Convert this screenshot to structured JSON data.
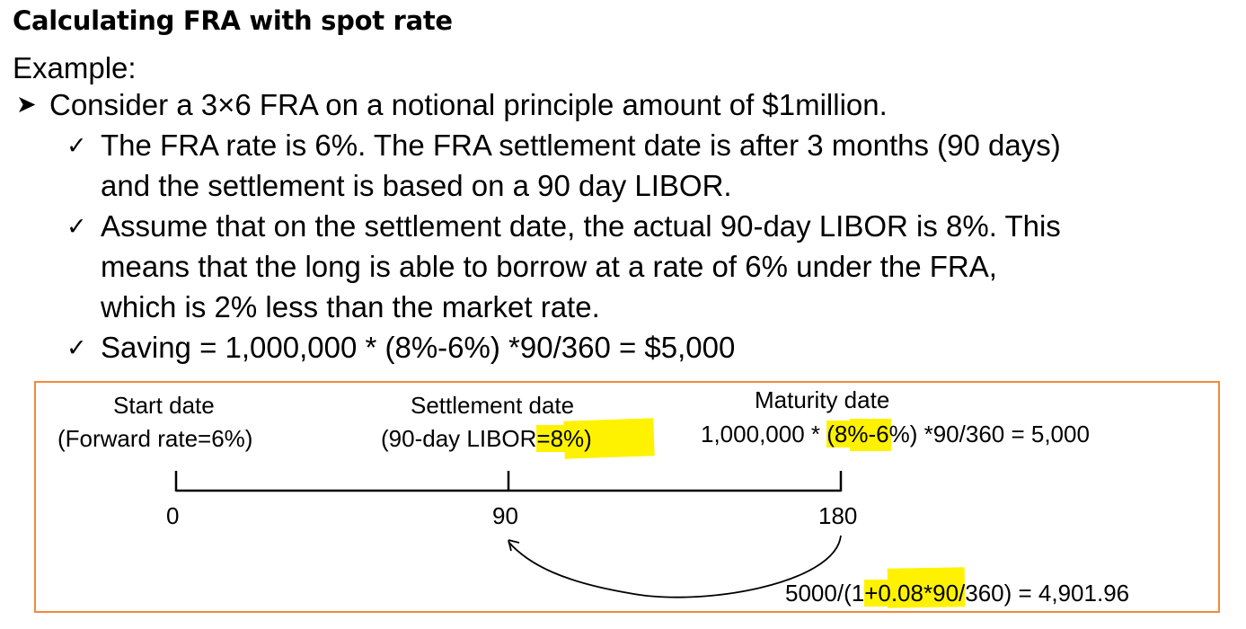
{
  "title": "Calculating FRA with spot rate",
  "example_label": "Example:",
  "bullet": "Consider a 3×6 FRA on a notional principle amount of $1million.",
  "checks": [
    {
      "line1": "The FRA rate is 6%. The FRA settlement date is after 3 months (90 days)",
      "line2": "and the settlement is based on a 90 day LIBOR."
    },
    {
      "line1": "Assume that on the settlement date, the actual 90-day LIBOR is 8%. This",
      "line2": "means that the long is able to borrow at a rate of 6% under the FRA,",
      "line3": "which is 2% less than the market rate."
    },
    {
      "line1": "Saving = 1,000,000 * (8%-6%) *90/360 = $5,000"
    }
  ],
  "diagram": {
    "start": {
      "title": "Start date",
      "sub": "(Forward rate=6%)"
    },
    "settlement": {
      "title": "Settlement date",
      "sub_pre": "(90-day LIBOR",
      "sub_hl": "=8%",
      "sub_post": ")"
    },
    "maturity": {
      "title": "Maturity date",
      "calc_pre": "1,000,000 * ",
      "calc_hl": "(8%",
      "calc_post": "-6%) *90/360 = 5,000"
    },
    "ticks": [
      "0",
      "90",
      "180"
    ],
    "pv": {
      "pre": "5000/(1",
      "hl": "+0.08",
      "post": "*90/360) = 4,901.96"
    },
    "highlight_color": "#fff200",
    "border_color": "#f08a3c"
  }
}
